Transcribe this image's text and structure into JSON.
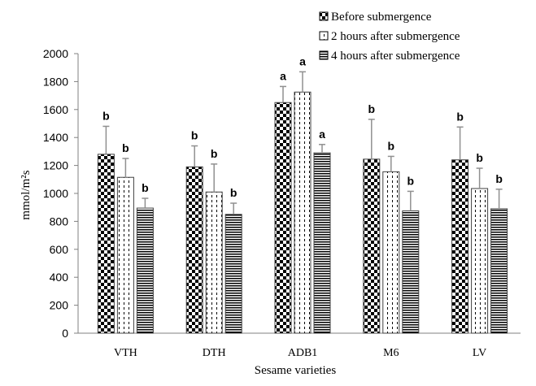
{
  "chart_data": {
    "type": "bar",
    "title": "",
    "xlabel": "Sesame varieties",
    "ylabel": "mmol/m²s",
    "ylim": [
      0,
      2000
    ],
    "yticks": [
      0,
      200,
      400,
      600,
      800,
      1000,
      1200,
      1400,
      1600,
      1800,
      2000
    ],
    "grid": false,
    "legend_position": "top-right",
    "categories": [
      "VTH",
      "DTH",
      "ADB1",
      "M6",
      "LV"
    ],
    "series": [
      {
        "name": "Before submergence",
        "pattern": "checkerboard",
        "values": [
          1280,
          1190,
          1650,
          1245,
          1240
        ],
        "error": [
          200,
          150,
          115,
          285,
          235
        ],
        "letters": [
          "b",
          "b",
          "a",
          "b",
          "b"
        ]
      },
      {
        "name": "2 hours after submergence",
        "pattern": "dotted-vertical",
        "values": [
          1115,
          1010,
          1725,
          1155,
          1035
        ],
        "error": [
          135,
          200,
          145,
          110,
          145
        ],
        "letters": [
          "b",
          "b",
          "a",
          "b",
          "b"
        ]
      },
      {
        "name": "4 hours after submergence",
        "pattern": "horizontal-lines",
        "values": [
          895,
          850,
          1290,
          875,
          890
        ],
        "error": [
          70,
          80,
          60,
          140,
          140
        ],
        "letters": [
          "b",
          "b",
          "a",
          "b",
          "b"
        ]
      }
    ]
  }
}
